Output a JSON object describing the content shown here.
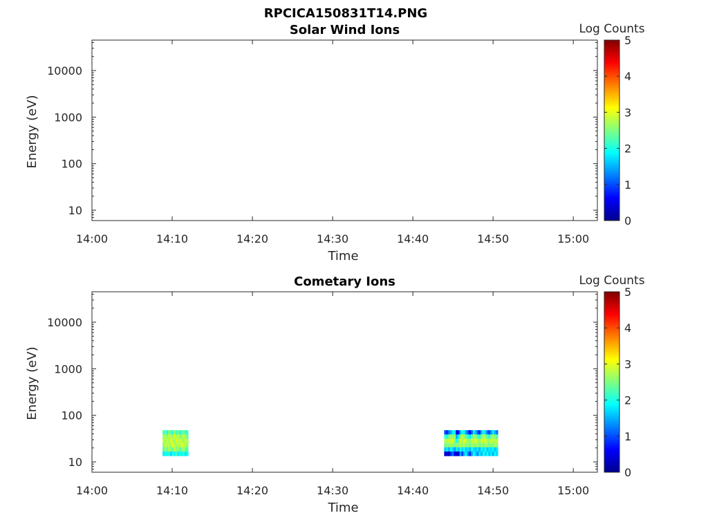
{
  "figure_title": "RPCICA150831T14.PNG",
  "colors": {
    "jet": [
      "#00008f",
      "#0000ff",
      "#0080ff",
      "#00ffff",
      "#80ff80",
      "#ffff00",
      "#ff8000",
      "#ff0000",
      "#800000"
    ]
  },
  "chart_data": [
    {
      "type": "heatmap",
      "title": "Solar Wind Ions",
      "xlabel": "Time",
      "ylabel": "Energy (eV)",
      "xlim": [
        "14:00",
        "15:03"
      ],
      "ylim": [
        6,
        45000
      ],
      "yscale": "log",
      "xticks": [
        "14:00",
        "14:10",
        "14:20",
        "14:30",
        "14:40",
        "14:50",
        "15:00"
      ],
      "yticks": [
        "10",
        "100",
        "1000",
        "10000"
      ],
      "grid": false,
      "colorbar": {
        "label": "Log Counts",
        "range": [
          0,
          5
        ],
        "ticks": [
          "0",
          "1",
          "2",
          "3",
          "4",
          "5"
        ],
        "colormap": "jet"
      },
      "blocks": []
    },
    {
      "type": "heatmap",
      "title": "Cometary Ions",
      "xlabel": "Time",
      "ylabel": "Energy (eV)",
      "xlim": [
        "14:00",
        "15:03"
      ],
      "ylim": [
        6,
        45000
      ],
      "yscale": "log",
      "xticks": [
        "14:00",
        "14:10",
        "14:20",
        "14:30",
        "14:40",
        "14:50",
        "15:00"
      ],
      "yticks": [
        "10",
        "100",
        "1000",
        "10000"
      ],
      "grid": false,
      "colorbar": {
        "label": "Log Counts",
        "range": [
          0,
          5
        ],
        "ticks": [
          "0",
          "1",
          "2",
          "3",
          "4",
          "5"
        ],
        "colormap": "jet"
      },
      "blocks": [
        {
          "time_start": "14:08.8",
          "time_end": "14:12.0",
          "energy_min_eV": 13.5,
          "energy_max_eV": 48,
          "energy_bins": 6,
          "time_bins": 14,
          "dominant_log_counts": 2.5,
          "cells": [
            [
              2.2,
              2.4,
              2.0,
              2.5,
              2.3,
              2.1,
              2.6,
              2.2,
              2.4,
              2.0,
              2.3,
              2.5,
              2.1,
              2.2
            ],
            [
              2.6,
              2.8,
              2.5,
              2.9,
              2.7,
              2.6,
              3.0,
              2.7,
              2.8,
              2.5,
              2.6,
              2.9,
              2.6,
              2.4
            ],
            [
              2.8,
              2.6,
              2.9,
              2.7,
              2.9,
              2.8,
              2.6,
              3.0,
              2.7,
              2.9,
              2.8,
              2.6,
              2.9,
              2.7
            ],
            [
              2.5,
              2.9,
              2.7,
              2.8,
              2.6,
              3.0,
              2.8,
              2.6,
              2.9,
              2.7,
              3.0,
              2.8,
              2.7,
              2.6
            ],
            [
              2.3,
              2.6,
              2.4,
              2.7,
              2.5,
              2.4,
              2.8,
              2.5,
              2.6,
              2.3,
              2.5,
              2.7,
              2.4,
              2.3
            ],
            [
              1.8,
              2.0,
              1.9,
              2.1,
              1.7,
              2.0,
              1.9,
              2.2,
              1.8,
              2.0,
              1.9,
              2.1,
              1.8,
              1.9
            ]
          ]
        },
        {
          "time_start": "14:43.9",
          "time_end": "14:50.6",
          "energy_min_eV": 13.5,
          "energy_max_eV": 48,
          "energy_bins": 6,
          "time_bins": 28,
          "dominant_log_counts": 2.3,
          "cells": [
            [
              1.0,
              0.8,
              1.2,
              1.5,
              1.8,
              2.0,
              0.5,
              0.7,
              1.6,
              2.0,
              1.8,
              1.4,
              1.0,
              0.6,
              1.2,
              1.8,
              1.5,
              1.0,
              0.8,
              1.6,
              2.0,
              1.7,
              1.2,
              0.9,
              1.4,
              1.8,
              1.5,
              1.2
            ],
            [
              2.2,
              2.0,
              2.4,
              2.6,
              2.5,
              2.7,
              1.5,
              1.8,
              2.6,
              2.8,
              2.6,
              2.3,
              2.1,
              1.8,
              2.4,
              2.7,
              2.5,
              2.2,
              2.0,
              2.5,
              2.8,
              2.6,
              2.3,
              2.0,
              2.4,
              2.7,
              2.5,
              2.3
            ],
            [
              2.8,
              2.7,
              2.9,
              2.8,
              3.0,
              2.6,
              2.0,
              2.4,
              2.9,
              2.7,
              3.0,
              2.8,
              2.6,
              2.5,
              2.9,
              2.8,
              3.0,
              2.7,
              2.6,
              2.9,
              2.8,
              3.0,
              2.7,
              2.6,
              2.9,
              2.8,
              2.7,
              2.8
            ],
            [
              2.4,
              2.6,
              2.5,
              2.7,
              2.6,
              2.4,
              2.6,
              2.5,
              2.8,
              2.6,
              2.7,
              2.5,
              2.6,
              2.4,
              2.7,
              2.6,
              2.5,
              2.7,
              2.4,
              2.6,
              2.5,
              2.7,
              2.6,
              2.4,
              2.6,
              2.5,
              2.7,
              2.6
            ],
            [
              1.6,
              1.8,
              1.5,
              1.9,
              1.7,
              1.4,
              1.8,
              1.6,
              2.0,
              1.7,
              1.9,
              1.6,
              1.8,
              1.5,
              1.9,
              1.7,
              1.6,
              1.8,
              1.5,
              1.9,
              1.7,
              2.0,
              1.6,
              1.8,
              1.7,
              1.9,
              1.6,
              1.8
            ],
            [
              0.3,
              0.5,
              0.2,
              0.8,
              1.2,
              0.6,
              0.3,
              0.4,
              1.4,
              0.9,
              1.6,
              1.8,
              1.2,
              0.8,
              1.5,
              1.9,
              1.6,
              1.3,
              1.8,
              1.5,
              2.0,
              1.7,
              1.9,
              1.6,
              1.8,
              1.5,
              1.9,
              1.7
            ]
          ]
        }
      ]
    }
  ]
}
